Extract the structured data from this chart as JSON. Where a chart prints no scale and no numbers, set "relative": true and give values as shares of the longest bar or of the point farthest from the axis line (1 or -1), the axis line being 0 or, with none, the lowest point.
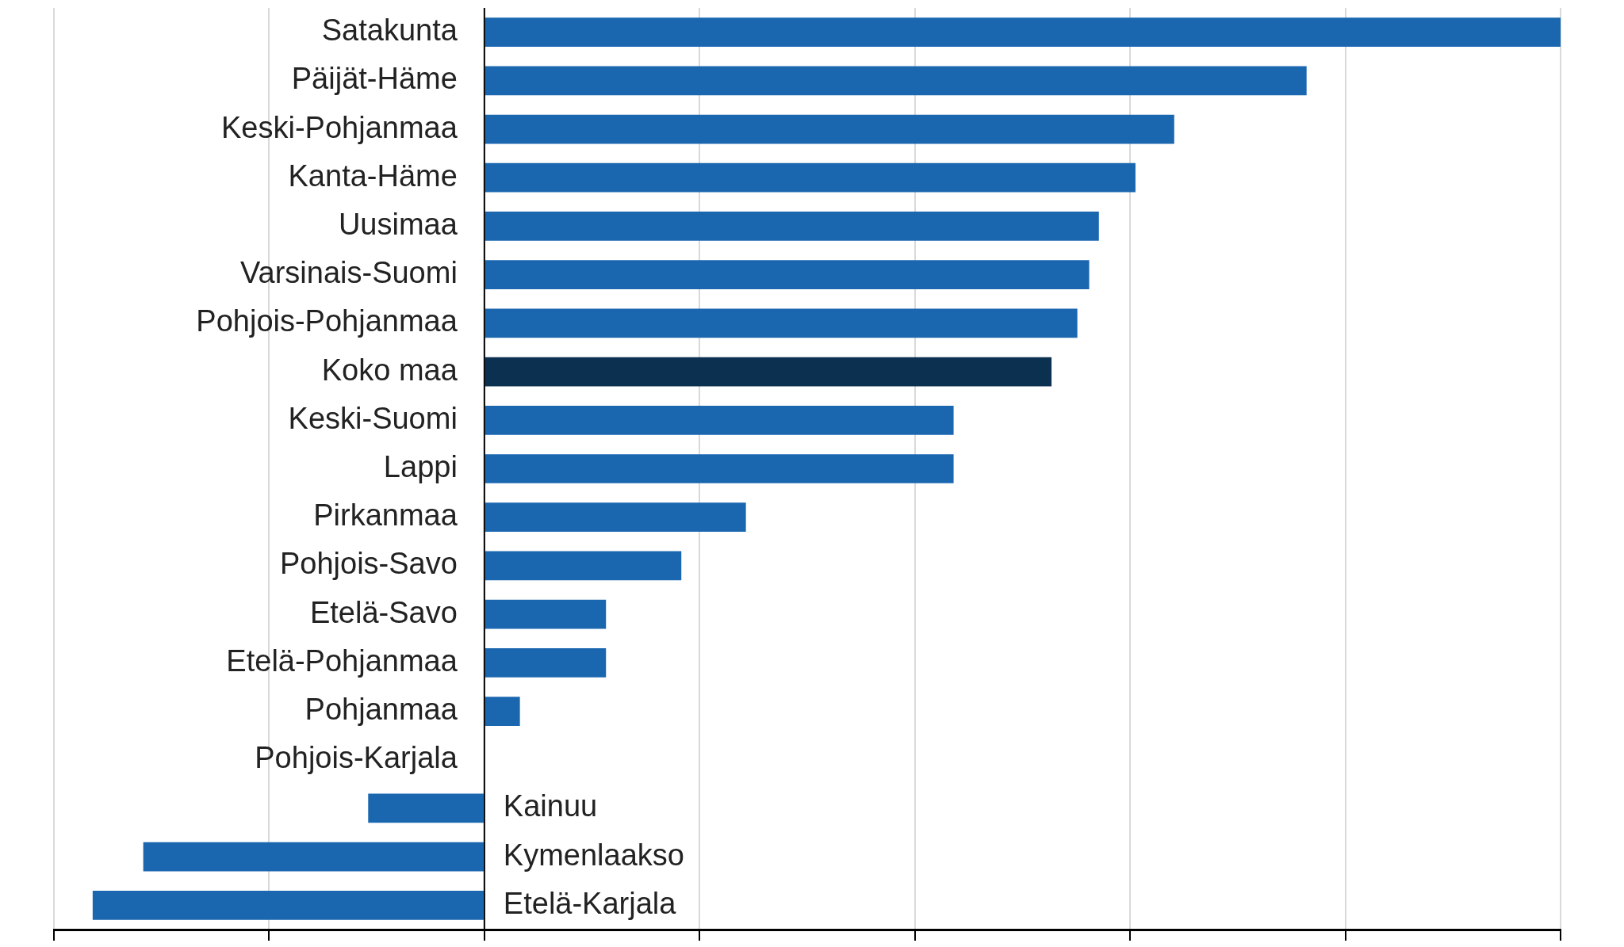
{
  "chart_data": {
    "type": "bar",
    "orientation": "horizontal",
    "relative": true,
    "grid": "x",
    "categories": [
      "Satakunta",
      "Päijät-Häme",
      "Keski-Pohjanmaa",
      "Kanta-Häme",
      "Uusimaa",
      "Varsinais-Suomi",
      "Pohjois-Pohjanmaa",
      "Koko maa",
      "Keski-Suomi",
      "Lappi",
      "Pirkanmaa",
      "Pohjois-Savo",
      "Etelä-Savo",
      "Etelä-Pohjanmaa",
      "Pohjanmaa",
      "Pohjois-Karjala",
      "Kainuu",
      "Kymenlaakso",
      "Etelä-Karjala"
    ],
    "values": [
      1,
      0.764,
      0.641,
      0.605,
      0.571,
      0.562,
      0.551,
      0.527,
      0.436,
      0.436,
      0.243,
      0.183,
      0.113,
      0.113,
      0.033,
      0,
      -0.108,
      -0.317,
      -0.364
    ],
    "colors": [
      "#1a67b0",
      "#1a67b0",
      "#1a67b0",
      "#1a67b0",
      "#1a67b0",
      "#1a67b0",
      "#1a67b0",
      "#0b3050",
      "#1a67b0",
      "#1a67b0",
      "#1a67b0",
      "#1a67b0",
      "#1a67b0",
      "#1a67b0",
      "#1a67b0",
      "#1a67b0",
      "#1a67b0",
      "#1a67b0",
      "#1a67b0"
    ]
  }
}
